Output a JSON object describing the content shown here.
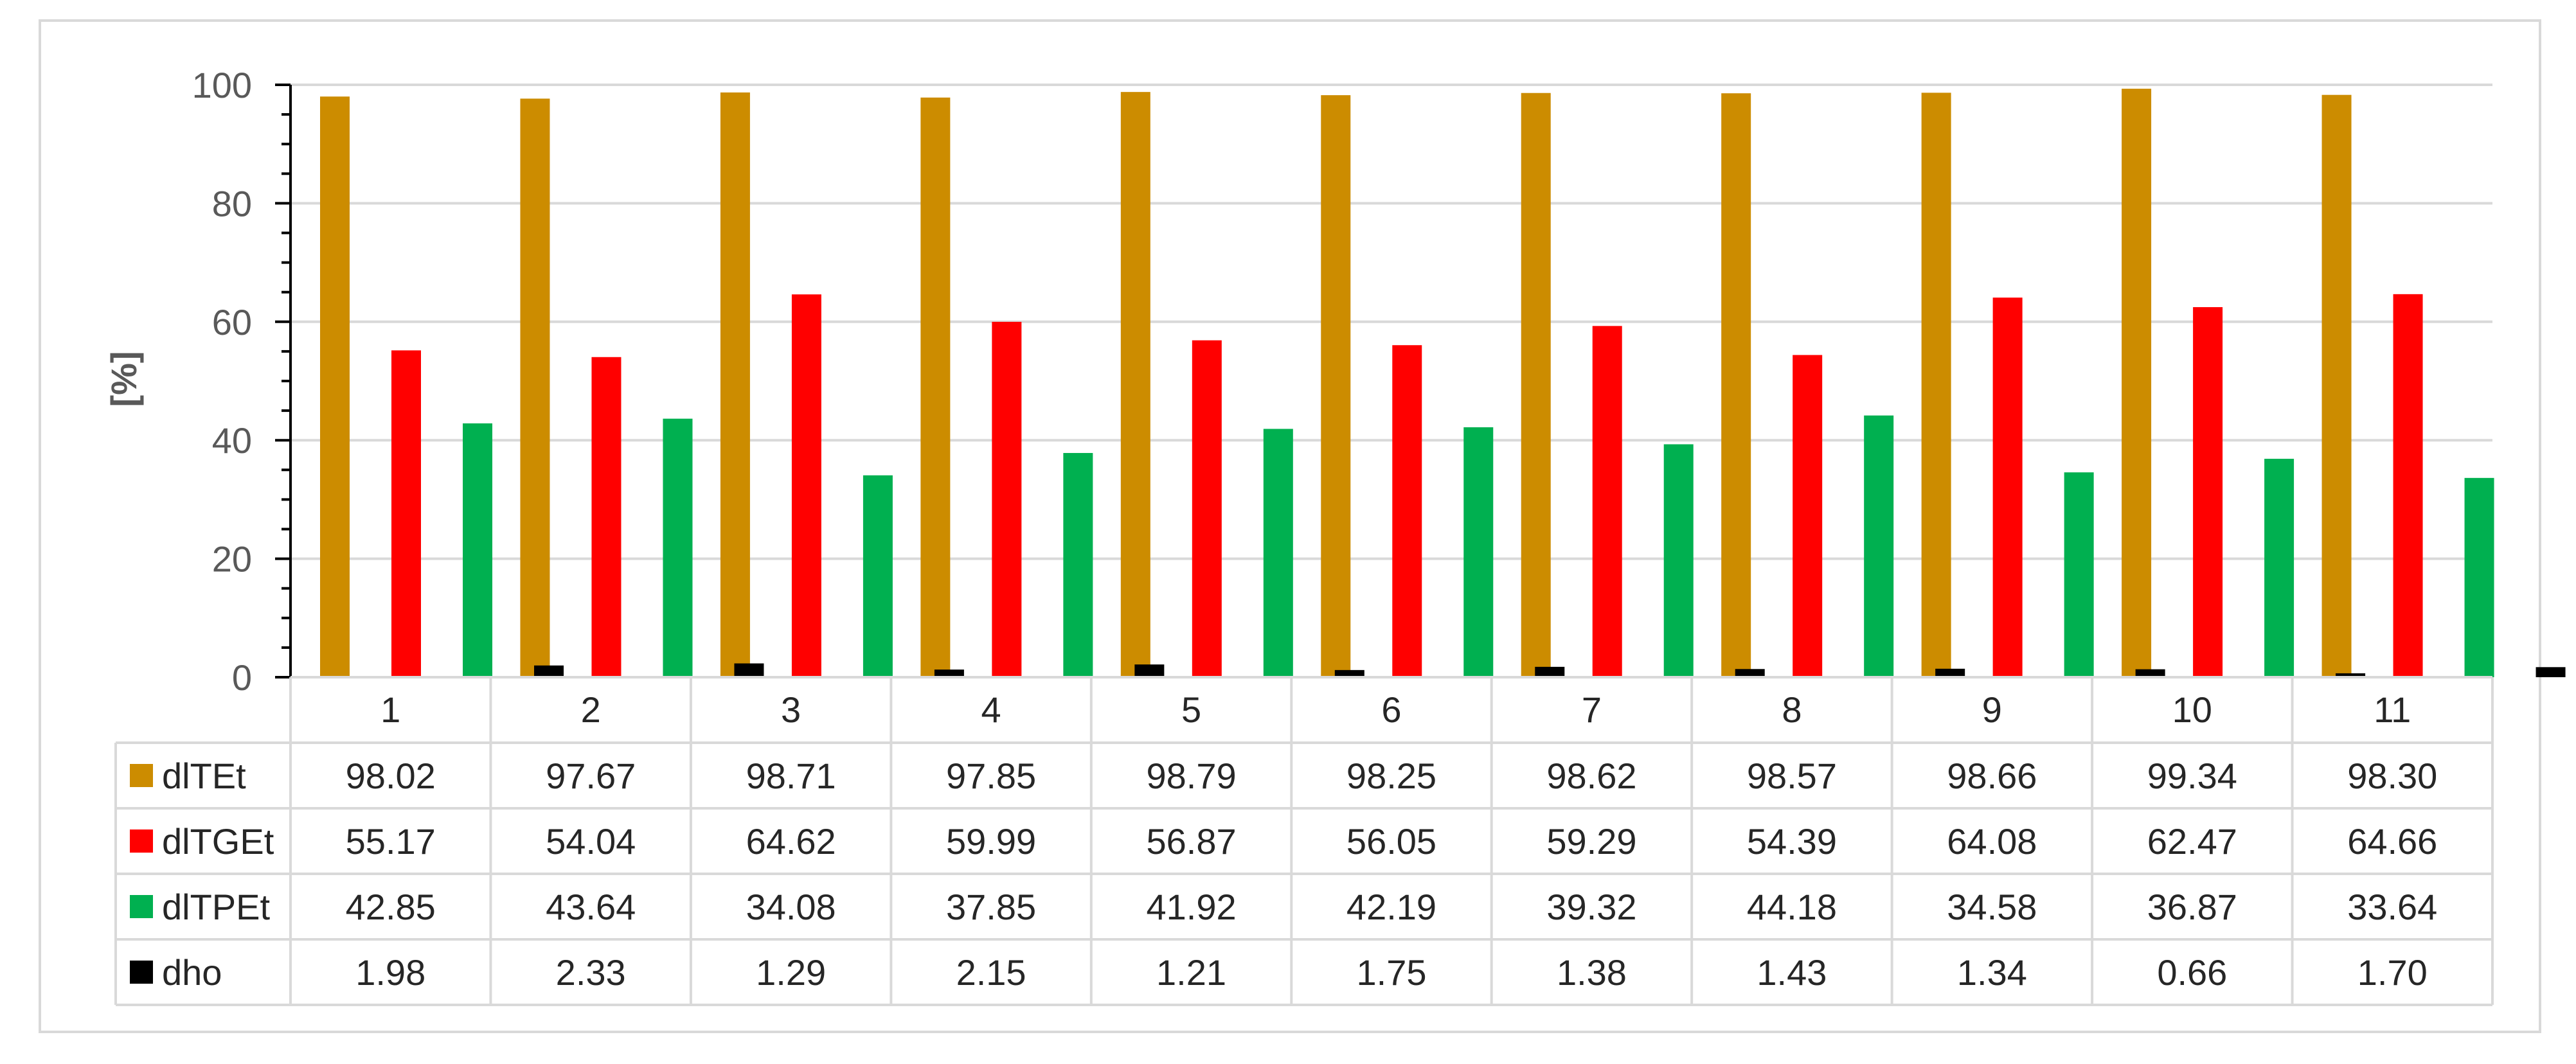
{
  "chart_data": {
    "type": "bar",
    "title": "",
    "xlabel": "",
    "ylabel": "[%]",
    "ylim": [
      0,
      100
    ],
    "yticks": [
      0,
      20,
      40,
      60,
      80,
      100
    ],
    "grid": true,
    "legend": "data-table-left",
    "categories": [
      "1",
      "2",
      "3",
      "4",
      "5",
      "6",
      "7",
      "8",
      "9",
      "10",
      "11"
    ],
    "series": [
      {
        "name": "dlTEt",
        "color": "#CC8C00",
        "values": [
          98.02,
          97.67,
          98.71,
          97.85,
          98.79,
          98.25,
          98.62,
          98.57,
          98.66,
          99.34,
          98.3
        ],
        "labels": [
          "98.02",
          "97.67",
          "98.71",
          "97.85",
          "98.79",
          "98.25",
          "98.62",
          "98.57",
          "98.66",
          "99.34",
          "98.30"
        ]
      },
      {
        "name": "dlTGEt",
        "color": "#FF0000",
        "values": [
          55.17,
          54.04,
          64.62,
          59.99,
          56.87,
          56.05,
          59.29,
          54.39,
          64.08,
          62.47,
          64.66
        ],
        "labels": [
          "55.17",
          "54.04",
          "64.62",
          "59.99",
          "56.87",
          "56.05",
          "59.29",
          "54.39",
          "64.08",
          "62.47",
          "64.66"
        ]
      },
      {
        "name": "dlTPEt",
        "color": "#00B050",
        "values": [
          42.85,
          43.64,
          34.08,
          37.85,
          41.92,
          42.19,
          39.32,
          44.18,
          34.58,
          36.87,
          33.64
        ],
        "labels": [
          "42.85",
          "43.64",
          "34.08",
          "37.85",
          "41.92",
          "42.19",
          "39.32",
          "44.18",
          "34.58",
          "36.87",
          "33.64"
        ]
      },
      {
        "name": "dho",
        "color": "#000000",
        "values": [
          1.98,
          2.33,
          1.29,
          2.15,
          1.21,
          1.75,
          1.38,
          1.43,
          1.34,
          0.66,
          1.7
        ],
        "labels": [
          "1.98",
          "2.33",
          "1.29",
          "2.15",
          "1.21",
          "1.75",
          "1.38",
          "1.43",
          "1.34",
          "0.66",
          "1.70"
        ]
      }
    ]
  }
}
